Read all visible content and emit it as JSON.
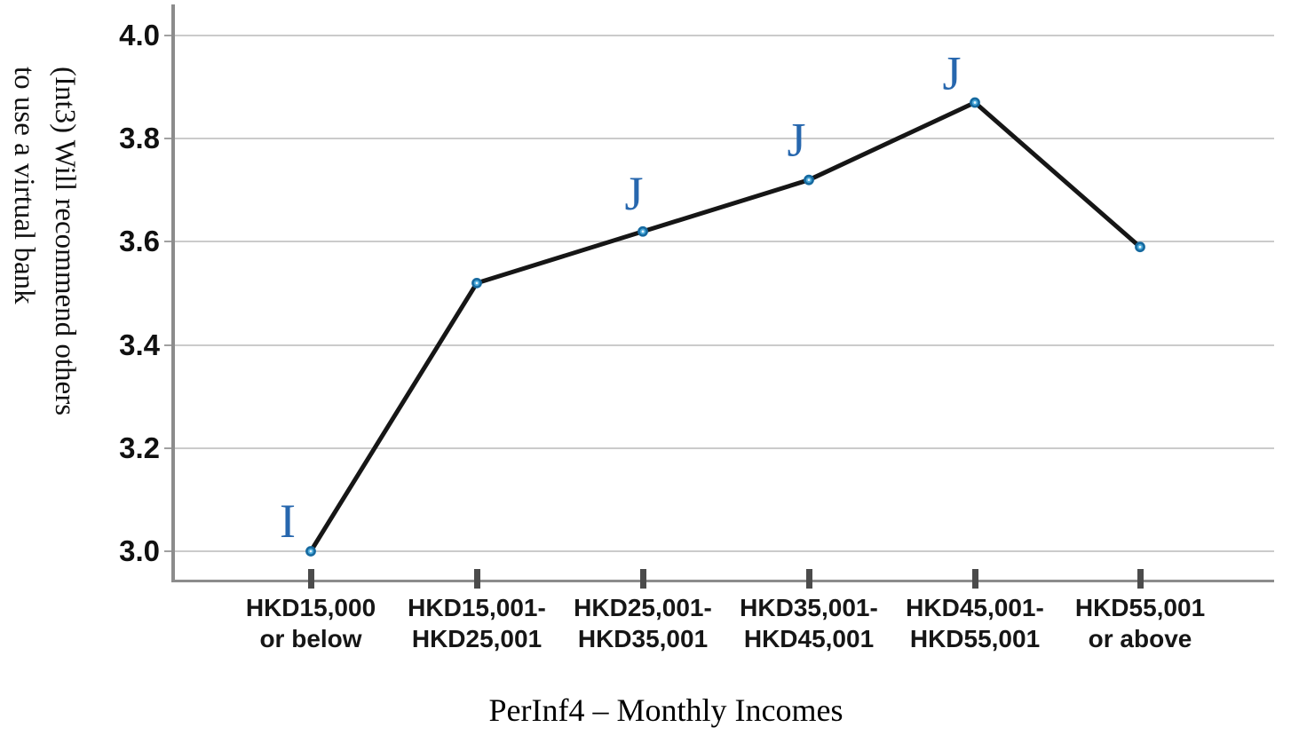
{
  "chart": {
    "y_axis_title": "(Int3) Will recommend others\nto use a virtual bank",
    "x_axis_title": "PerInf4 – Monthly Incomes"
  },
  "chart_data": {
    "type": "line",
    "title": "",
    "xlabel": "PerInf4 – Monthly Incomes",
    "ylabel": "(Int3) Will recommend others to use a virtual bank",
    "categories": [
      "HKD15,000\nor below",
      "HKD15,001-\nHKD25,001",
      "HKD25,001-\nHKD35,001",
      "HKD35,001-\nHKD45,001",
      "HKD45,001-\nHKD55,001",
      "HKD55,001\nor above"
    ],
    "series": [
      {
        "name": "(Int3) Will recommend others to use a virtual bank",
        "values": [
          3.0,
          3.52,
          3.62,
          3.72,
          3.87,
          3.59
        ]
      }
    ],
    "y_ticks": [
      "4.0",
      "3.8",
      "3.6",
      "3.4",
      "3.2",
      "3.0"
    ],
    "ylim": [
      2.94,
      4.06
    ],
    "grid": "horizontal",
    "legend": "none",
    "annotations": [
      {
        "point_index": 0,
        "text": "I"
      },
      {
        "point_index": 2,
        "text": "J"
      },
      {
        "point_index": 3,
        "text": "J"
      },
      {
        "point_index": 4,
        "text": "J"
      }
    ],
    "colors": {
      "line": "#161616",
      "marker_fill": "#4aa8d8",
      "marker_stroke": "#16699f",
      "annotation": "#2767ae",
      "gridline": "#cbcbcb",
      "axis": "#8c8c8c"
    }
  }
}
